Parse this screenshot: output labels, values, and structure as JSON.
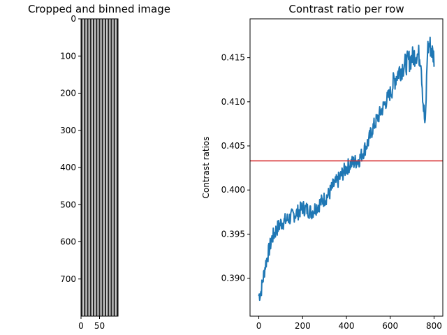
{
  "chart_data": [
    {
      "type": "image",
      "title": "Cropped and binned image",
      "xlabel": "",
      "ylabel": "",
      "xlim": [
        0,
        100
      ],
      "ylim": [
        800,
        0
      ],
      "xticks": [
        0,
        50
      ],
      "yticks": [
        0,
        100,
        200,
        300,
        400,
        500,
        600,
        700
      ],
      "stripe_count": 25,
      "colormap": "gray"
    },
    {
      "type": "line",
      "title": "Contrast ratio per row",
      "xlabel": "",
      "ylabel": "Contrast ratios",
      "xlim": [
        -40,
        840
      ],
      "ylim": [
        0.3857,
        0.4194
      ],
      "xticks": [
        0,
        200,
        400,
        600,
        800
      ],
      "yticks": [
        0.39,
        0.395,
        0.4,
        0.405,
        0.41,
        0.415
      ],
      "hline": {
        "y": 0.4033,
        "color": "#d62728"
      },
      "series": [
        {
          "color": "#1f77b4",
          "x": [
            0,
            10,
            20,
            30,
            40,
            50,
            60,
            80,
            100,
            120,
            140,
            160,
            180,
            200,
            220,
            240,
            260,
            280,
            300,
            320,
            340,
            360,
            380,
            400,
            420,
            440,
            460,
            480,
            500,
            520,
            540,
            560,
            580,
            600,
            620,
            640,
            660,
            680,
            700,
            720,
            740,
            750,
            760,
            770,
            780,
            800
          ],
          "y": [
            0.388,
            0.3885,
            0.39,
            0.3915,
            0.3925,
            0.3935,
            0.3945,
            0.3955,
            0.3962,
            0.3965,
            0.3968,
            0.3972,
            0.3975,
            0.398,
            0.3978,
            0.3975,
            0.398,
            0.3985,
            0.399,
            0.3995,
            0.4005,
            0.401,
            0.4018,
            0.4025,
            0.403,
            0.4032,
            0.4035,
            0.4045,
            0.4055,
            0.407,
            0.408,
            0.409,
            0.41,
            0.411,
            0.4125,
            0.4135,
            0.414,
            0.4145,
            0.415,
            0.4155,
            0.415,
            0.41,
            0.407,
            0.416,
            0.4165,
            0.415
          ]
        }
      ]
    }
  ]
}
